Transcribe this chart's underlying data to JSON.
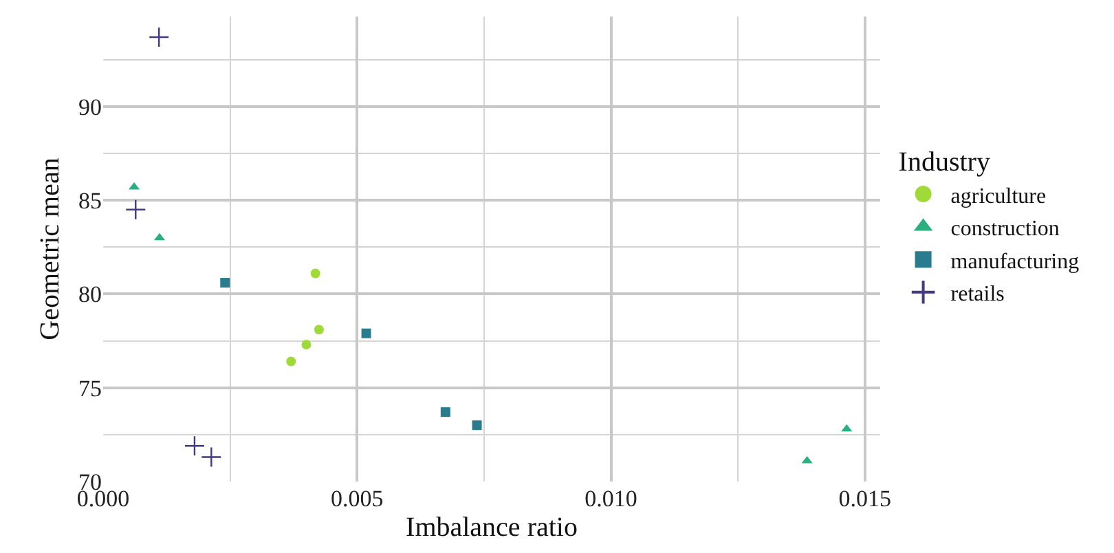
{
  "chart_data": {
    "type": "scatter",
    "xlabel": "Imbalance ratio",
    "ylabel": "Geometric mean",
    "legend_title": "Industry",
    "legend": "right",
    "grid": true,
    "xlim": [
      0,
      0.0153
    ],
    "ylim": [
      70,
      94.8
    ],
    "xticks": [
      {
        "value": 0,
        "label": "0.000"
      },
      {
        "value": 0.0025,
        "label": null
      },
      {
        "value": 0.005,
        "label": "0.005"
      },
      {
        "value": 0.0075,
        "label": null
      },
      {
        "value": 0.01,
        "label": "0.010"
      },
      {
        "value": 0.0125,
        "label": null
      },
      {
        "value": 0.015,
        "label": "0.015"
      }
    ],
    "yticks": [
      70,
      {
        "value": 72.5,
        "label": null
      },
      75,
      {
        "value": 77.5,
        "label": null
      },
      80,
      {
        "value": 82.5,
        "label": null
      },
      85,
      {
        "value": 87.5,
        "label": null
      },
      90,
      {
        "value": 92.5,
        "label": null
      }
    ],
    "series": [
      {
        "name": "agriculture",
        "color": "#a0da39",
        "marker": "circle",
        "x": [
          0.00418,
          0.00425,
          0.004,
          0.0037
        ],
        "values": [
          81.1,
          78.1,
          77.3,
          76.4
        ]
      },
      {
        "name": "construction",
        "color": "#2ab07f",
        "marker": "triangle",
        "x": [
          0.00061,
          0.00111,
          0.01386,
          0.01464
        ],
        "values": [
          85.7,
          83.0,
          71.1,
          72.8
        ]
      },
      {
        "name": "manufacturing",
        "color": "#287c8e",
        "marker": "square",
        "x": [
          0.0024,
          0.00518,
          0.00674,
          0.00736
        ],
        "values": [
          80.6,
          77.9,
          73.7,
          73.0
        ]
      },
      {
        "name": "retails",
        "color": "#443983",
        "marker": "cross",
        "x": [
          0.0011,
          0.00064,
          0.0018,
          0.00213
        ],
        "values": [
          93.7,
          84.5,
          71.9,
          71.3
        ]
      }
    ]
  }
}
